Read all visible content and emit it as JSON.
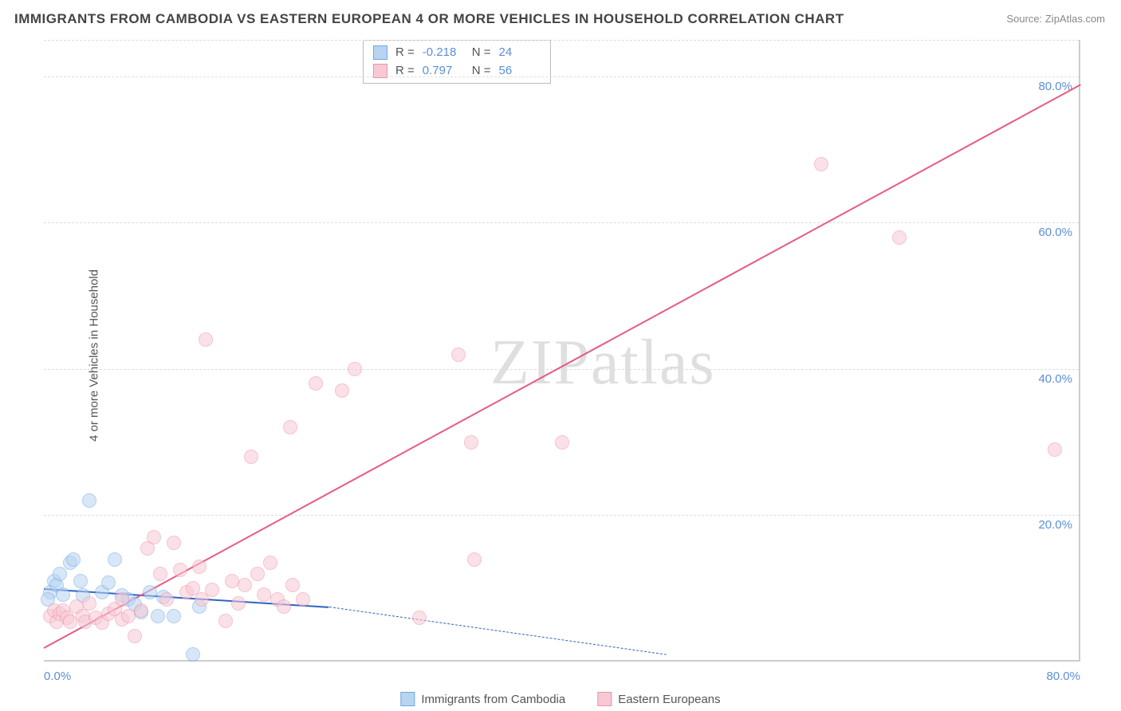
{
  "title": "IMMIGRANTS FROM CAMBODIA VS EASTERN EUROPEAN 4 OR MORE VEHICLES IN HOUSEHOLD CORRELATION CHART",
  "source": "Source: ZipAtlas.com",
  "ylabel": "4 or more Vehicles in Household",
  "watermark": {
    "part1": "ZIP",
    "part2": "atlas"
  },
  "chart": {
    "type": "scatter",
    "background_color": "#ffffff",
    "grid_color": "#dddddd",
    "axis_color": "#cccccc",
    "tick_color": "#5b8fd6",
    "tick_fontsize": 15,
    "xlim": [
      0,
      80
    ],
    "ylim": [
      0,
      85
    ],
    "x_ticks": [
      {
        "v": 0,
        "label": "0.0%"
      },
      {
        "v": 80,
        "label": "80.0%"
      }
    ],
    "y_ticks": [
      {
        "v": 20,
        "label": "20.0%"
      },
      {
        "v": 40,
        "label": "40.0%"
      },
      {
        "v": 60,
        "label": "60.0%"
      },
      {
        "v": 80,
        "label": "80.0%"
      }
    ],
    "series": [
      {
        "id": "cambodian",
        "label": "Immigrants from Cambodia",
        "fill": "#b9d4f1",
        "stroke": "#6ea8e6",
        "fill_opacity": 0.55,
        "marker_radius": 9,
        "trend": {
          "color": "#2f63c0",
          "width": 2,
          "x1": 0,
          "y1": 10,
          "x2": 22,
          "y2": 7.5,
          "dash_ext": {
            "x2": 48,
            "y2": 1
          }
        },
        "stats": {
          "R": "-0.218",
          "N": "24"
        },
        "points": [
          [
            0.8,
            11
          ],
          [
            0.5,
            9.5
          ],
          [
            0.3,
            8.5
          ],
          [
            1,
            10.5
          ],
          [
            1.2,
            12
          ],
          [
            1.5,
            9.2
          ],
          [
            2,
            13.5
          ],
          [
            2.3,
            14
          ],
          [
            2.8,
            11
          ],
          [
            3,
            9
          ],
          [
            3.5,
            22
          ],
          [
            4.5,
            9.5
          ],
          [
            5,
            10.8
          ],
          [
            5.5,
            14
          ],
          [
            6,
            9
          ],
          [
            6.5,
            8.5
          ],
          [
            7,
            7.8
          ],
          [
            7.5,
            6.8
          ],
          [
            8.2,
            9.5
          ],
          [
            8.8,
            6.2
          ],
          [
            9.2,
            8.8
          ],
          [
            10,
            6.2
          ],
          [
            11.5,
            1
          ],
          [
            12,
            7.5
          ]
        ]
      },
      {
        "id": "eastern_european",
        "label": "Eastern Europeans",
        "fill": "#f7c9d4",
        "stroke": "#ef92aa",
        "fill_opacity": 0.55,
        "marker_radius": 9,
        "trend": {
          "color": "#e75b83",
          "width": 2,
          "x1": 0,
          "y1": 2,
          "x2": 80,
          "y2": 79
        },
        "stats": {
          "R": "0.797",
          "N": "56"
        },
        "points": [
          [
            0.5,
            6.2
          ],
          [
            0.8,
            7
          ],
          [
            1,
            5.5
          ],
          [
            1.2,
            6.5
          ],
          [
            1.5,
            7
          ],
          [
            1.8,
            6
          ],
          [
            2,
            5.5
          ],
          [
            2.5,
            7.5
          ],
          [
            3,
            6.2
          ],
          [
            3.2,
            5.5
          ],
          [
            3.5,
            8
          ],
          [
            4,
            6
          ],
          [
            4.5,
            5.3
          ],
          [
            5,
            6.5
          ],
          [
            5.5,
            7.2
          ],
          [
            6,
            5.8
          ],
          [
            6,
            8.5
          ],
          [
            6.5,
            6.2
          ],
          [
            7,
            3.5
          ],
          [
            7.5,
            7
          ],
          [
            8,
            15.5
          ],
          [
            8.5,
            17
          ],
          [
            9,
            12
          ],
          [
            9.5,
            8.5
          ],
          [
            10,
            16.2
          ],
          [
            10.5,
            12.5
          ],
          [
            11,
            9.5
          ],
          [
            11.5,
            10
          ],
          [
            12,
            13
          ],
          [
            12.2,
            8.5
          ],
          [
            12.5,
            44
          ],
          [
            13,
            9.8
          ],
          [
            14,
            5.6
          ],
          [
            14.5,
            11
          ],
          [
            15,
            8
          ],
          [
            15.5,
            10.5
          ],
          [
            16,
            28
          ],
          [
            16.5,
            12
          ],
          [
            17,
            9.2
          ],
          [
            17.5,
            13.5
          ],
          [
            18,
            8.5
          ],
          [
            18.5,
            7.5
          ],
          [
            19,
            32
          ],
          [
            19.2,
            10.5
          ],
          [
            20,
            8.5
          ],
          [
            21,
            38
          ],
          [
            23,
            37
          ],
          [
            24,
            40
          ],
          [
            29,
            6
          ],
          [
            32,
            42
          ],
          [
            33,
            30
          ],
          [
            33.2,
            14
          ],
          [
            40,
            30
          ],
          [
            60,
            68
          ],
          [
            66,
            58
          ],
          [
            78,
            29
          ]
        ]
      }
    ],
    "legend_bottom": [
      {
        "swatch_fill": "#b9d4f1",
        "swatch_stroke": "#6ea8e6",
        "label": "Immigrants from Cambodia"
      },
      {
        "swatch_fill": "#f7c9d4",
        "swatch_stroke": "#ef92aa",
        "label": "Eastern Europeans"
      }
    ],
    "stats_box": {
      "rows": [
        {
          "swatch_fill": "#b9d4f1",
          "swatch_stroke": "#6ea8e6",
          "R_label": "R =",
          "R": "-0.218",
          "N_label": "N =",
          "N": "24"
        },
        {
          "swatch_fill": "#f7c9d4",
          "swatch_stroke": "#ef92aa",
          "R_label": "R =",
          "R": "0.797",
          "N_label": "N =",
          "N": "56"
        }
      ]
    }
  }
}
